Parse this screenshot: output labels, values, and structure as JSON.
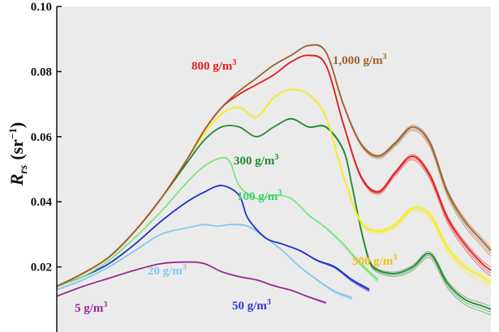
{
  "chart_data": {
    "type": "line",
    "ylabel_main": "R",
    "ylabel_sub": "rs",
    "ylabel_unit": "(sr",
    "ylabel_exp": "−1",
    "ylabel_close": ")",
    "ylim": [
      0.0,
      0.1
    ],
    "yticks": [
      "0.02",
      "0.04",
      "0.06",
      "0.08",
      "0.10"
    ],
    "ytick_values": [
      0.02,
      0.04,
      0.06,
      0.08,
      0.1
    ],
    "background": "#ebebeb",
    "x_domain": [
      0,
      100
    ],
    "series": [
      {
        "name": "5 g/m³",
        "label": "5 g/m",
        "color": "#9b2a8f",
        "x": [
          0,
          6,
          12,
          18,
          24,
          30,
          34,
          38,
          42,
          46,
          50,
          54,
          58,
          62
        ],
        "values": [
          0.011,
          0.014,
          0.0165,
          0.019,
          0.021,
          0.0215,
          0.021,
          0.0185,
          0.017,
          0.016,
          0.0142,
          0.0128,
          0.0108,
          0.009
        ]
      },
      {
        "name": "20 g/m³",
        "label": "20 g/m",
        "color": "#85c6ec",
        "x": [
          0,
          6,
          12,
          18,
          24,
          30,
          34,
          37,
          40,
          44,
          48,
          52,
          56,
          60,
          64,
          68
        ],
        "values": [
          0.013,
          0.016,
          0.02,
          0.025,
          0.03,
          0.032,
          0.033,
          0.0325,
          0.033,
          0.0325,
          0.029,
          0.025,
          0.02,
          0.016,
          0.0125,
          0.0105
        ]
      },
      {
        "name": "50 g/m³",
        "label": "50 g/m",
        "color": "#1d2fd0",
        "x": [
          0,
          6,
          12,
          18,
          24,
          30,
          34,
          38,
          42,
          44,
          48,
          52,
          56,
          60,
          64,
          68,
          72
        ],
        "values": [
          0.014,
          0.017,
          0.021,
          0.027,
          0.034,
          0.04,
          0.043,
          0.045,
          0.042,
          0.035,
          0.029,
          0.027,
          0.025,
          0.022,
          0.02,
          0.016,
          0.013
        ]
      },
      {
        "name": "100 g/m³",
        "label": "100 g/m",
        "color": "#7be67b",
        "x": [
          0,
          6,
          12,
          18,
          24,
          30,
          34,
          38,
          40,
          42,
          46,
          50,
          54,
          58,
          62,
          66,
          70,
          74
        ],
        "values": [
          0.014,
          0.017,
          0.022,
          0.029,
          0.037,
          0.046,
          0.051,
          0.0535,
          0.052,
          0.045,
          0.041,
          0.042,
          0.041,
          0.036,
          0.032,
          0.027,
          0.021,
          0.016
        ]
      },
      {
        "name": "300 g/m³",
        "label": "300 g/m",
        "color": "#1f8a2e",
        "x": [
          0,
          6,
          12,
          18,
          24,
          30,
          34,
          38,
          42,
          46,
          50,
          54,
          58,
          62,
          66,
          68,
          70,
          72,
          74,
          78,
          82,
          86,
          90,
          94,
          98,
          100
        ],
        "values": [
          0.014,
          0.018,
          0.023,
          0.031,
          0.041,
          0.052,
          0.059,
          0.063,
          0.063,
          0.06,
          0.063,
          0.0655,
          0.063,
          0.063,
          0.056,
          0.045,
          0.032,
          0.022,
          0.019,
          0.018,
          0.02,
          0.024,
          0.015,
          0.01,
          0.008,
          0.007
        ]
      },
      {
        "name": "500 g/m³",
        "label": "500 g/m",
        "color": "#f5ef14",
        "x": [
          0,
          6,
          12,
          18,
          24,
          30,
          34,
          38,
          42,
          46,
          50,
          54,
          58,
          62,
          66,
          70,
          74,
          78,
          82,
          86,
          90,
          94,
          98,
          100
        ],
        "values": [
          0.014,
          0.018,
          0.023,
          0.031,
          0.041,
          0.053,
          0.061,
          0.067,
          0.069,
          0.066,
          0.072,
          0.0745,
          0.073,
          0.066,
          0.048,
          0.034,
          0.031,
          0.033,
          0.038,
          0.036,
          0.026,
          0.02,
          0.017,
          0.015
        ]
      },
      {
        "name": "800 g/m³",
        "label": "800 g/m",
        "color": "#e41c1c",
        "x": [
          0,
          6,
          12,
          18,
          24,
          30,
          34,
          38,
          42,
          46,
          50,
          54,
          58,
          62,
          66,
          70,
          74,
          78,
          82,
          86,
          90,
          94,
          98,
          100
        ],
        "values": [
          0.014,
          0.018,
          0.023,
          0.031,
          0.041,
          0.053,
          0.062,
          0.069,
          0.073,
          0.076,
          0.079,
          0.083,
          0.085,
          0.082,
          0.064,
          0.048,
          0.043,
          0.049,
          0.054,
          0.048,
          0.035,
          0.027,
          0.021,
          0.019
        ]
      },
      {
        "name": "1,000 g/m³",
        "label": "1,000 g/m",
        "color": "#a0622a",
        "x": [
          0,
          6,
          12,
          18,
          24,
          30,
          34,
          38,
          42,
          46,
          50,
          54,
          58,
          62,
          66,
          70,
          74,
          78,
          82,
          86,
          90,
          94,
          98,
          100
        ],
        "values": [
          0.014,
          0.018,
          0.023,
          0.031,
          0.041,
          0.053,
          0.062,
          0.069,
          0.074,
          0.078,
          0.082,
          0.085,
          0.088,
          0.086,
          0.07,
          0.058,
          0.054,
          0.058,
          0.063,
          0.058,
          0.043,
          0.034,
          0.028,
          0.025
        ]
      }
    ],
    "annotations": [
      {
        "series": 7,
        "text": "800 g/m",
        "sup": "3",
        "color": "#e41c1c"
      },
      {
        "series": 8,
        "text": "1,000 g/m",
        "sup": "3",
        "color": "#a0622a"
      },
      {
        "series": 4,
        "text": "300 g/m",
        "sup": "3",
        "color": "#1f8a2e"
      },
      {
        "series": 3,
        "text": "100 g/m",
        "sup": "3",
        "color": "#3dcf6a"
      },
      {
        "series": 5,
        "text": "500 g/m",
        "sup": "3",
        "color": "#f2c20e"
      },
      {
        "series": 1,
        "text": "20 g/m",
        "sup": "3",
        "color": "#85c6ec"
      },
      {
        "series": 2,
        "text": "50 g/m",
        "sup": "3",
        "color": "#2d3bd0"
      },
      {
        "series": 0,
        "text": "5 g/m",
        "sup": "3",
        "color": "#9b2a8f"
      }
    ]
  }
}
